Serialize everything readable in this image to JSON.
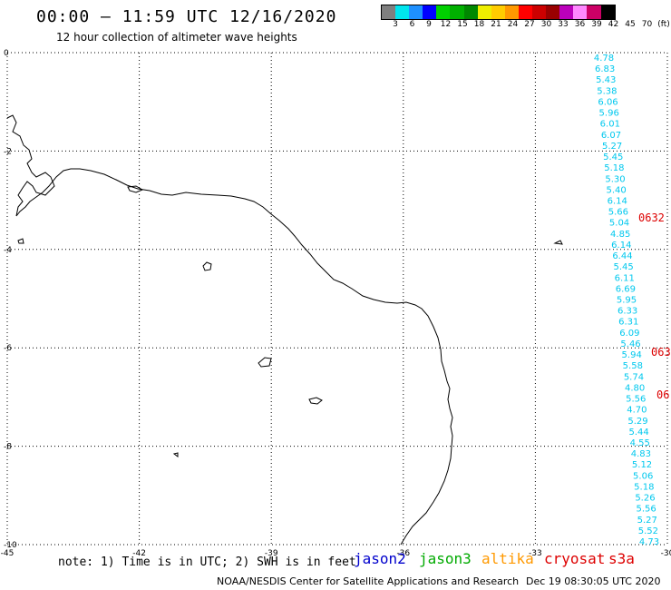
{
  "header": {
    "title": "00:00 – 11:59 UTC 12/16/2020",
    "subtitle": "12 hour collection of altimeter wave heights"
  },
  "colorbar": {
    "colors": [
      "#7f7f7f",
      "#00e5ee",
      "#1e90ff",
      "#0000ff",
      "#00d000",
      "#00b000",
      "#008800",
      "#eeee00",
      "#ffcc00",
      "#ff9900",
      "#ff0000",
      "#cc0000",
      "#990000",
      "#bb00bb",
      "#ff88ff",
      "#cc0066",
      "#000000"
    ],
    "labels": [
      "3",
      "6",
      "9",
      "12",
      "15",
      "18",
      "21",
      "24",
      "27",
      "30",
      "33",
      "36",
      "39",
      "42",
      "45",
      "70",
      "(ft)"
    ]
  },
  "map": {
    "lon_range": [
      -45,
      -30
    ],
    "lat_range": [
      -10,
      0
    ],
    "lon_ticks": [
      "-45",
      "-42",
      "-39",
      "-36",
      "-33",
      "-30"
    ],
    "lat_ticks": [
      "0",
      "-2",
      "-4",
      "-6",
      "-8",
      "-10"
    ]
  },
  "swh_values": [
    "4.78",
    "6.83",
    "5.43",
    "5.38",
    "6.06",
    "5.96",
    "6.01",
    "6.07",
    "5.27",
    "5.45",
    "5.18",
    "5.30",
    "5.40",
    "6.14",
    "5.66",
    "5.04",
    "4.85",
    "6.14",
    "6.44",
    "5.45",
    "6.11",
    "6.69",
    "5.95",
    "6.33",
    "6.31",
    "6.09",
    "5.46",
    "5.94",
    "5.58",
    "5.74",
    "4.80",
    "5.56",
    "4.70",
    "5.29",
    "5.44",
    "4.55",
    "4.83",
    "5.12",
    "5.06",
    "5.18",
    "5.26",
    "5.56",
    "5.27",
    "5.52",
    "4.73"
  ],
  "time_labels": [
    {
      "text": "0632",
      "color": "#dd0000"
    },
    {
      "text": "063",
      "color": "#dd0000"
    },
    {
      "text": "06",
      "color": "#dd0000"
    }
  ],
  "footer": {
    "note": "note: 1) Time is in UTC; 2) SWH is in feet",
    "satellites": [
      {
        "name": "jason2",
        "color": "#0000cc"
      },
      {
        "name": "jason3",
        "color": "#00aa00"
      },
      {
        "name": "altika",
        "color": "#ff9900"
      },
      {
        "name": "cryosat",
        "color": "#dd0000"
      },
      {
        "name": "s3a",
        "color": "#dd0000"
      }
    ],
    "credit": "NOAA/NESDIS Center for Satellite Applications and Research",
    "timestamp": "Dec 19 08:30:05 UTC 2020"
  }
}
